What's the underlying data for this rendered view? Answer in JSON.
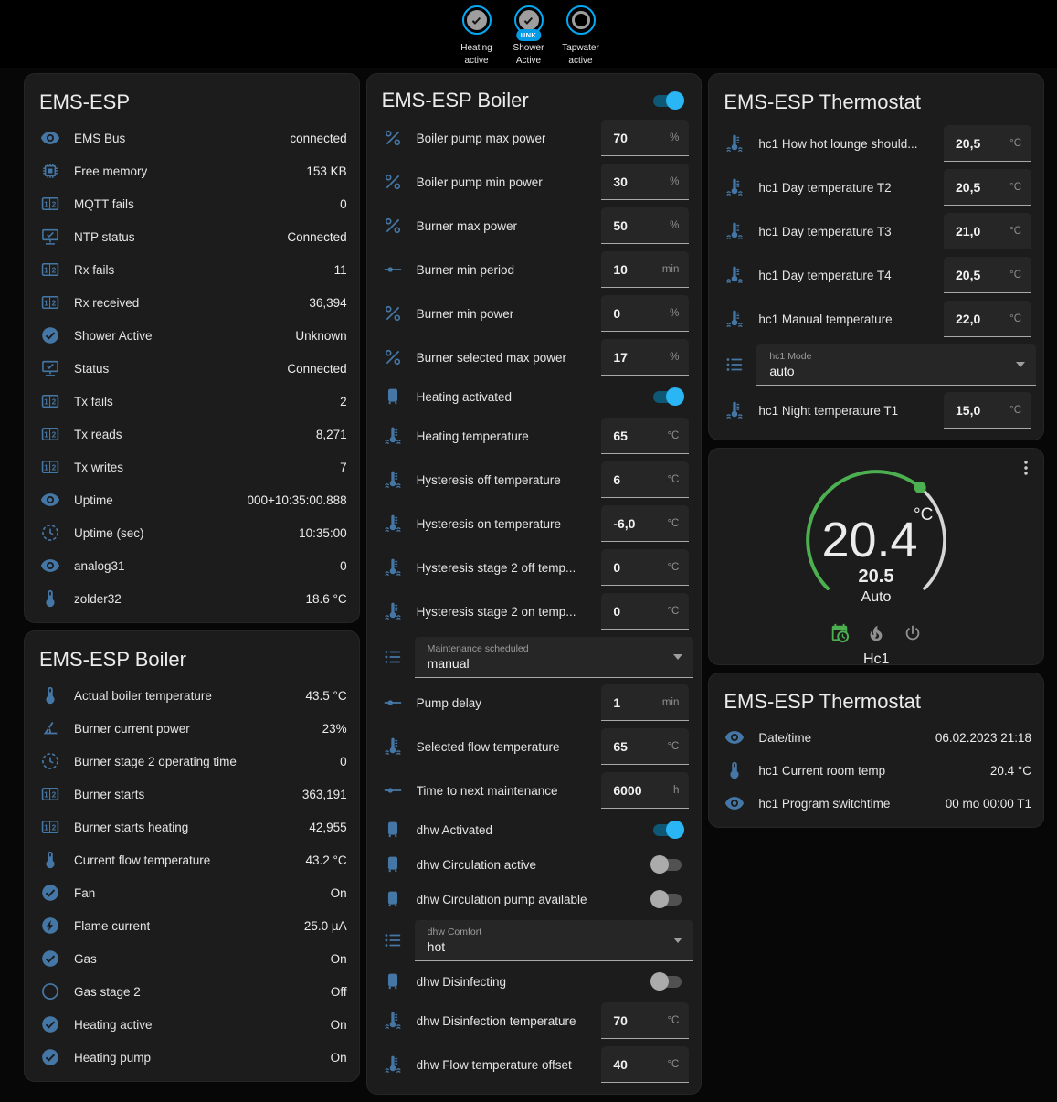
{
  "colors": {
    "accent": "#03a9f4",
    "icon_blue": "#4577a6",
    "green": "#4caf50",
    "card": "#1c1c1c"
  },
  "top_badges": [
    {
      "label": "Heating\nactive",
      "state": "on",
      "badge": ""
    },
    {
      "label": "Shower\nActive",
      "state": "on",
      "badge": "UNK"
    },
    {
      "label": "Tapwater\nactive",
      "state": "off",
      "badge": ""
    }
  ],
  "cards": {
    "ems": {
      "title": "EMS-ESP",
      "rows": [
        {
          "type": "sensor",
          "icon": "eye",
          "label": "EMS Bus",
          "value": "connected"
        },
        {
          "type": "sensor",
          "icon": "memory",
          "label": "Free memory",
          "value": "153 KB"
        },
        {
          "type": "sensor",
          "icon": "counter",
          "label": "MQTT fails",
          "value": "0"
        },
        {
          "type": "sensor",
          "icon": "monitor",
          "label": "NTP status",
          "value": "Connected"
        },
        {
          "type": "sensor",
          "icon": "counter",
          "label": "Rx fails",
          "value": "11"
        },
        {
          "type": "sensor",
          "icon": "counter",
          "label": "Rx received",
          "value": "36,394"
        },
        {
          "type": "sensor",
          "icon": "check-circle",
          "label": "Shower Active",
          "value": "Unknown"
        },
        {
          "type": "sensor",
          "icon": "monitor",
          "label": "Status",
          "value": "Connected"
        },
        {
          "type": "sensor",
          "icon": "counter",
          "label": "Tx fails",
          "value": "2"
        },
        {
          "type": "sensor",
          "icon": "counter",
          "label": "Tx reads",
          "value": "8,271"
        },
        {
          "type": "sensor",
          "icon": "counter",
          "label": "Tx writes",
          "value": "7"
        },
        {
          "type": "sensor",
          "icon": "eye",
          "label": "Uptime",
          "value": "000+10:35:00.888"
        },
        {
          "type": "sensor",
          "icon": "clock",
          "label": "Uptime (sec)",
          "value": "10:35:00"
        },
        {
          "type": "sensor",
          "icon": "eye",
          "label": "analog31",
          "value": "0"
        },
        {
          "type": "sensor",
          "icon": "thermometer",
          "label": "zolder32",
          "value": "18.6 °C"
        }
      ]
    },
    "boiler_info": {
      "title": "EMS-ESP Boiler",
      "rows": [
        {
          "type": "sensor",
          "icon": "thermometer",
          "label": "Actual boiler temperature",
          "value": "43.5 °C"
        },
        {
          "type": "sensor",
          "icon": "angle",
          "label": "Burner current power",
          "value": "23%"
        },
        {
          "type": "sensor",
          "icon": "clock",
          "label": "Burner stage 2 operating time",
          "value": "0"
        },
        {
          "type": "sensor",
          "icon": "counter",
          "label": "Burner starts",
          "value": "363,191"
        },
        {
          "type": "sensor",
          "icon": "counter",
          "label": "Burner starts heating",
          "value": "42,955"
        },
        {
          "type": "sensor",
          "icon": "thermometer",
          "label": "Current flow temperature",
          "value": "43.2 °C"
        },
        {
          "type": "sensor",
          "icon": "check-circle",
          "label": "Fan",
          "value": "On"
        },
        {
          "type": "sensor",
          "icon": "bolt-circle",
          "label": "Flame current",
          "value": "25.0 µA"
        },
        {
          "type": "sensor",
          "icon": "check-circle",
          "label": "Gas",
          "value": "On"
        },
        {
          "type": "sensor",
          "icon": "circle-outline",
          "label": "Gas stage 2",
          "value": "Off"
        },
        {
          "type": "sensor",
          "icon": "check-circle",
          "label": "Heating active",
          "value": "On"
        },
        {
          "type": "sensor",
          "icon": "check-circle",
          "label": "Heating pump",
          "value": "On"
        }
      ]
    },
    "boiler_settings": {
      "title": "EMS-ESP Boiler",
      "header_toggle": "on",
      "rows": [
        {
          "type": "number",
          "icon": "percent",
          "label": "Boiler pump max power",
          "value": "70",
          "unit": "%"
        },
        {
          "type": "number",
          "icon": "percent",
          "label": "Boiler pump min power",
          "value": "30",
          "unit": "%"
        },
        {
          "type": "number",
          "icon": "percent",
          "label": "Burner max power",
          "value": "50",
          "unit": "%"
        },
        {
          "type": "number",
          "icon": "ray",
          "label": "Burner min period",
          "value": "10",
          "unit": "min"
        },
        {
          "type": "number",
          "icon": "percent",
          "label": "Burner min power",
          "value": "0",
          "unit": "%"
        },
        {
          "type": "number",
          "icon": "percent",
          "label": "Burner selected max power",
          "value": "17",
          "unit": "%"
        },
        {
          "type": "toggle",
          "icon": "boiler",
          "label": "Heating activated",
          "state": "on"
        },
        {
          "type": "number",
          "icon": "coolant",
          "label": "Heating temperature",
          "value": "65",
          "unit": "°C"
        },
        {
          "type": "number",
          "icon": "coolant",
          "label": "Hysteresis off temperature",
          "value": "6",
          "unit": "°C"
        },
        {
          "type": "number",
          "icon": "coolant",
          "label": "Hysteresis on temperature",
          "value": "-6,0",
          "unit": "°C"
        },
        {
          "type": "number",
          "icon": "coolant",
          "label": "Hysteresis stage 2 off temp...",
          "value": "0",
          "unit": "°C"
        },
        {
          "type": "number",
          "icon": "coolant",
          "label": "Hysteresis stage 2 on temp...",
          "value": "0",
          "unit": "°C"
        },
        {
          "type": "select",
          "icon": "list",
          "caption": "Maintenance scheduled",
          "value": "manual"
        },
        {
          "type": "number",
          "icon": "ray",
          "label": "Pump delay",
          "value": "1",
          "unit": "min"
        },
        {
          "type": "number",
          "icon": "coolant",
          "label": "Selected flow temperature",
          "value": "65",
          "unit": "°C"
        },
        {
          "type": "number",
          "icon": "ray",
          "label": "Time to next maintenance",
          "value": "6000",
          "unit": "h"
        },
        {
          "type": "toggle",
          "icon": "boiler",
          "label": "dhw Activated",
          "state": "on"
        },
        {
          "type": "toggle",
          "icon": "boiler",
          "label": "dhw Circulation active",
          "state": "off"
        },
        {
          "type": "toggle",
          "icon": "boiler",
          "label": "dhw Circulation pump available",
          "state": "off"
        },
        {
          "type": "select",
          "icon": "list",
          "caption": "dhw Comfort",
          "value": "hot"
        },
        {
          "type": "toggle",
          "icon": "boiler",
          "label": "dhw Disinfecting",
          "state": "off"
        },
        {
          "type": "number",
          "icon": "coolant",
          "label": "dhw Disinfection temperature",
          "value": "70",
          "unit": "°C"
        },
        {
          "type": "number",
          "icon": "coolant",
          "label": "dhw Flow temperature offset",
          "value": "40",
          "unit": "°C"
        }
      ]
    },
    "thermostat_settings": {
      "title": "EMS-ESP Thermostat",
      "rows": [
        {
          "type": "number",
          "icon": "coolant",
          "label": "hc1 How hot lounge should...",
          "value": "20,5",
          "unit": "°C"
        },
        {
          "type": "number",
          "icon": "coolant",
          "label": "hc1 Day temperature T2",
          "value": "20,5",
          "unit": "°C"
        },
        {
          "type": "number",
          "icon": "coolant",
          "label": "hc1 Day temperature T3",
          "value": "21,0",
          "unit": "°C"
        },
        {
          "type": "number",
          "icon": "coolant",
          "label": "hc1 Day temperature T4",
          "value": "20,5",
          "unit": "°C"
        },
        {
          "type": "number",
          "icon": "coolant",
          "label": "hc1 Manual temperature",
          "value": "22,0",
          "unit": "°C"
        },
        {
          "type": "select",
          "icon": "list",
          "caption": "hc1 Mode",
          "value": "auto"
        },
        {
          "type": "number",
          "icon": "coolant",
          "label": "hc1 Night temperature T1",
          "value": "15,0",
          "unit": "°C"
        }
      ]
    },
    "thermostat_gauge": {
      "current": "20.4",
      "unit": "°C",
      "setpoint": "20.5",
      "mode": "Auto",
      "name": "Hc1"
    },
    "thermostat_info": {
      "title": "EMS-ESP Thermostat",
      "rows": [
        {
          "type": "sensor",
          "icon": "eye",
          "label": "Date/time",
          "value": "06.02.2023 21:18"
        },
        {
          "type": "sensor",
          "icon": "thermometer",
          "label": "hc1 Current room temp",
          "value": "20.4 °C"
        },
        {
          "type": "sensor",
          "icon": "eye",
          "label": "hc1 Program switchtime",
          "value": "00 mo 00:00 T1"
        }
      ]
    }
  }
}
